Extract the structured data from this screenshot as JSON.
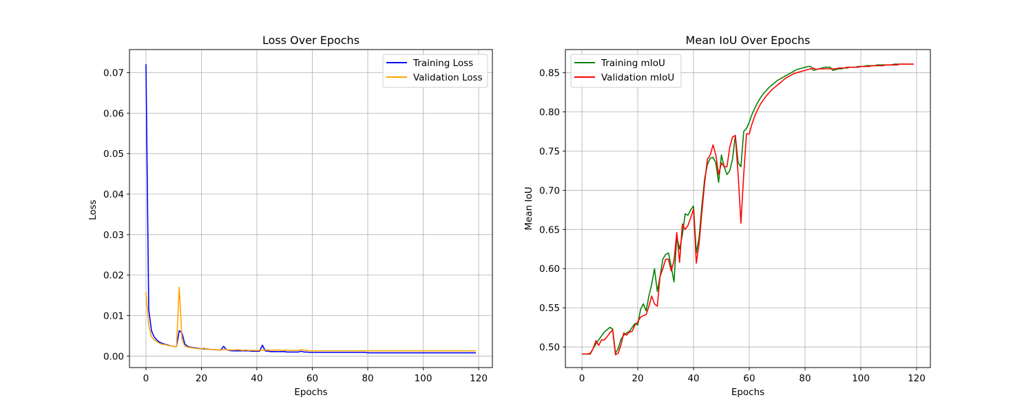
{
  "chart_data": [
    {
      "type": "line",
      "title": "Loss Over Epochs",
      "xlabel": "Epochs",
      "ylabel": "Loss",
      "xlim": [
        -5.95,
        124.95
      ],
      "ylim": [
        -0.00284,
        0.0757
      ],
      "xticks": [
        0,
        20,
        40,
        60,
        80,
        100,
        120
      ],
      "yticks": [
        0.0,
        0.01,
        0.02,
        0.03,
        0.04,
        0.05,
        0.06,
        0.07
      ],
      "ytick_labels": [
        "0.00",
        "0.01",
        "0.02",
        "0.03",
        "0.04",
        "0.05",
        "0.06",
        "0.07"
      ],
      "grid": true,
      "legend_position": "upper right",
      "x": [
        0,
        1,
        2,
        3,
        4,
        5,
        6,
        7,
        8,
        9,
        10,
        11,
        12,
        13,
        14,
        15,
        16,
        17,
        18,
        19,
        20,
        21,
        22,
        23,
        24,
        25,
        26,
        27,
        28,
        29,
        30,
        31,
        32,
        33,
        34,
        35,
        36,
        37,
        38,
        39,
        40,
        41,
        42,
        43,
        44,
        45,
        46,
        47,
        48,
        49,
        50,
        51,
        52,
        53,
        54,
        55,
        56,
        57,
        58,
        59,
        60,
        61,
        62,
        63,
        64,
        65,
        66,
        67,
        68,
        69,
        70,
        71,
        72,
        73,
        74,
        75,
        76,
        77,
        78,
        79,
        80,
        81,
        82,
        83,
        84,
        85,
        86,
        87,
        88,
        89,
        90,
        91,
        92,
        93,
        94,
        95,
        96,
        97,
        98,
        99,
        100,
        101,
        102,
        103,
        104,
        105,
        106,
        107,
        108,
        109,
        110,
        111,
        112,
        113,
        114,
        115,
        116,
        117,
        118,
        119
      ],
      "series": [
        {
          "name": "Training Loss",
          "color": "#0000ff",
          "values": [
            0.0721,
            0.0115,
            0.0062,
            0.0047,
            0.0039,
            0.0034,
            0.0031,
            0.0029,
            0.0027,
            0.0025,
            0.0024,
            0.0023,
            0.0063,
            0.0057,
            0.003,
            0.0024,
            0.0022,
            0.0021,
            0.002,
            0.0019,
            0.0018,
            0.0018,
            0.0017,
            0.0017,
            0.0016,
            0.0016,
            0.0015,
            0.0015,
            0.0024,
            0.0016,
            0.0014,
            0.0013,
            0.0013,
            0.0013,
            0.0013,
            0.0013,
            0.0013,
            0.0013,
            0.0012,
            0.0012,
            0.0012,
            0.0012,
            0.0027,
            0.0013,
            0.0012,
            0.0011,
            0.0011,
            0.0011,
            0.0011,
            0.0011,
            0.0011,
            0.001,
            0.001,
            0.001,
            0.001,
            0.001,
            0.0012,
            0.001,
            0.001,
            0.0009,
            0.0009,
            0.0009,
            0.0009,
            0.0009,
            0.0009,
            0.0009,
            0.0009,
            0.0009,
            0.0009,
            0.0009,
            0.0009,
            0.0009,
            0.0009,
            0.0009,
            0.0009,
            0.0009,
            0.0009,
            0.0009,
            0.0009,
            0.0009,
            0.0008,
            0.0008,
            0.0008,
            0.0008,
            0.0008,
            0.0008,
            0.0008,
            0.0008,
            0.0008,
            0.0008,
            0.0008,
            0.0008,
            0.0008,
            0.0008,
            0.0008,
            0.0008,
            0.0008,
            0.0008,
            0.0008,
            0.0008,
            0.0008,
            0.0008,
            0.0008,
            0.0008,
            0.0008,
            0.0008,
            0.0008,
            0.0008,
            0.0008,
            0.0008,
            0.0008,
            0.0008,
            0.0008,
            0.0008,
            0.0008,
            0.0008,
            0.0008,
            0.0008,
            0.0008,
            0.0008
          ]
        },
        {
          "name": "Validation Loss",
          "color": "#ffa500",
          "values": [
            0.0158,
            0.0075,
            0.0048,
            0.004,
            0.0035,
            0.0031,
            0.0029,
            0.0028,
            0.0026,
            0.0025,
            0.0024,
            0.0023,
            0.017,
            0.004,
            0.0025,
            0.0022,
            0.0021,
            0.002,
            0.0019,
            0.0018,
            0.0018,
            0.002,
            0.0016,
            0.0017,
            0.0016,
            0.0016,
            0.0015,
            0.0015,
            0.0016,
            0.0016,
            0.0015,
            0.0015,
            0.0015,
            0.0016,
            0.0015,
            0.0014,
            0.0015,
            0.0014,
            0.0014,
            0.0014,
            0.0014,
            0.0014,
            0.0014,
            0.0015,
            0.0015,
            0.0014,
            0.0014,
            0.0015,
            0.0015,
            0.0014,
            0.0014,
            0.0015,
            0.0014,
            0.0014,
            0.0014,
            0.0014,
            0.0016,
            0.0015,
            0.0014,
            0.0013,
            0.0013,
            0.0013,
            0.0013,
            0.0013,
            0.0013,
            0.0013,
            0.0013,
            0.0013,
            0.0013,
            0.0013,
            0.0013,
            0.0013,
            0.0013,
            0.0013,
            0.0013,
            0.0013,
            0.0013,
            0.0013,
            0.0013,
            0.0013,
            0.0013,
            0.0013,
            0.0013,
            0.0013,
            0.0013,
            0.0013,
            0.0013,
            0.0013,
            0.0013,
            0.0013,
            0.0013,
            0.0013,
            0.0013,
            0.0013,
            0.0013,
            0.0013,
            0.0013,
            0.0013,
            0.0013,
            0.0013,
            0.0013,
            0.0013,
            0.0013,
            0.0013,
            0.0013,
            0.0013,
            0.0013,
            0.0013,
            0.0013,
            0.0013,
            0.0013,
            0.0013,
            0.0013,
            0.0013,
            0.0013,
            0.0013,
            0.0013,
            0.0013,
            0.0013,
            0.0013
          ]
        }
      ]
    },
    {
      "type": "line",
      "title": "Mean IoU Over Epochs",
      "xlabel": "Epochs",
      "ylabel": "Mean IoU",
      "xlim": [
        -5.95,
        124.95
      ],
      "ylim": [
        0.4737,
        0.8796
      ],
      "xticks": [
        0,
        20,
        40,
        60,
        80,
        100,
        120
      ],
      "yticks": [
        0.5,
        0.55,
        0.6,
        0.65,
        0.7,
        0.75,
        0.8,
        0.85
      ],
      "ytick_labels": [
        "0.50",
        "0.55",
        "0.60",
        "0.65",
        "0.70",
        "0.75",
        "0.80",
        "0.85"
      ],
      "grid": true,
      "legend_position": "upper left",
      "x": [
        0,
        1,
        2,
        3,
        4,
        5,
        6,
        7,
        8,
        9,
        10,
        11,
        12,
        13,
        14,
        15,
        16,
        17,
        18,
        19,
        20,
        21,
        22,
        23,
        24,
        25,
        26,
        27,
        28,
        29,
        30,
        31,
        32,
        33,
        34,
        35,
        36,
        37,
        38,
        39,
        40,
        41,
        42,
        43,
        44,
        45,
        46,
        47,
        48,
        49,
        50,
        51,
        52,
        53,
        54,
        55,
        56,
        57,
        58,
        59,
        60,
        61,
        62,
        63,
        64,
        65,
        66,
        67,
        68,
        69,
        70,
        71,
        72,
        73,
        74,
        75,
        76,
        77,
        78,
        79,
        80,
        81,
        82,
        83,
        84,
        85,
        86,
        87,
        88,
        89,
        90,
        91,
        92,
        93,
        94,
        95,
        96,
        97,
        98,
        99,
        100,
        101,
        102,
        103,
        104,
        105,
        106,
        107,
        108,
        109,
        110,
        111,
        112,
        113,
        114,
        115,
        116,
        117,
        118,
        119
      ],
      "series": [
        {
          "name": "Training mIoU",
          "color": "#008000",
          "values": [
            0.491,
            0.491,
            0.491,
            0.492,
            0.498,
            0.504,
            0.509,
            0.514,
            0.519,
            0.522,
            0.525,
            0.523,
            0.492,
            0.498,
            0.51,
            0.515,
            0.518,
            0.52,
            0.525,
            0.53,
            0.528,
            0.548,
            0.555,
            0.546,
            0.565,
            0.58,
            0.6,
            0.571,
            0.59,
            0.612,
            0.618,
            0.62,
            0.603,
            0.583,
            0.641,
            0.625,
            0.643,
            0.67,
            0.668,
            0.675,
            0.68,
            0.62,
            0.64,
            0.68,
            0.715,
            0.733,
            0.741,
            0.742,
            0.735,
            0.71,
            0.745,
            0.73,
            0.72,
            0.725,
            0.74,
            0.77,
            0.735,
            0.73,
            0.775,
            0.779,
            0.787,
            0.797,
            0.805,
            0.812,
            0.818,
            0.823,
            0.827,
            0.831,
            0.834,
            0.837,
            0.84,
            0.842,
            0.844,
            0.846,
            0.848,
            0.85,
            0.852,
            0.854,
            0.855,
            0.856,
            0.857,
            0.858,
            0.858,
            0.853,
            0.854,
            0.855,
            0.856,
            0.857,
            0.857,
            0.857,
            0.853,
            0.854,
            0.855,
            0.855,
            0.856,
            0.856,
            0.857,
            0.857,
            0.857,
            0.858,
            0.858,
            0.858,
            0.859,
            0.859,
            0.859,
            0.859,
            0.86,
            0.86,
            0.86,
            0.86,
            0.86,
            0.86,
            0.861,
            0.861,
            0.861,
            0.861,
            0.861,
            0.861,
            0.861,
            0.861
          ]
        },
        {
          "name": "Validation mIoU",
          "color": "#ff0000",
          "values": [
            0.491,
            0.491,
            0.491,
            0.491,
            0.498,
            0.508,
            0.502,
            0.509,
            0.509,
            0.513,
            0.518,
            0.522,
            0.49,
            0.492,
            0.503,
            0.518,
            0.515,
            0.519,
            0.52,
            0.528,
            0.532,
            0.538,
            0.54,
            0.541,
            0.552,
            0.565,
            0.555,
            0.552,
            0.59,
            0.6,
            0.612,
            0.612,
            0.597,
            0.61,
            0.646,
            0.608,
            0.657,
            0.65,
            0.655,
            0.665,
            0.676,
            0.607,
            0.632,
            0.672,
            0.71,
            0.74,
            0.745,
            0.758,
            0.745,
            0.72,
            0.735,
            0.73,
            0.73,
            0.755,
            0.768,
            0.77,
            0.72,
            0.658,
            0.72,
            0.772,
            0.772,
            0.785,
            0.795,
            0.803,
            0.81,
            0.815,
            0.82,
            0.824,
            0.828,
            0.831,
            0.834,
            0.837,
            0.84,
            0.843,
            0.845,
            0.847,
            0.849,
            0.85,
            0.851,
            0.852,
            0.853,
            0.854,
            0.855,
            0.856,
            0.854,
            0.855,
            0.855,
            0.855,
            0.855,
            0.855,
            0.855,
            0.855,
            0.856,
            0.856,
            0.856,
            0.857,
            0.857,
            0.857,
            0.857,
            0.857,
            0.858,
            0.858,
            0.858,
            0.858,
            0.859,
            0.859,
            0.859,
            0.859,
            0.859,
            0.86,
            0.86,
            0.86,
            0.86,
            0.86,
            0.861,
            0.861,
            0.861,
            0.861,
            0.861,
            0.861
          ]
        }
      ]
    }
  ]
}
